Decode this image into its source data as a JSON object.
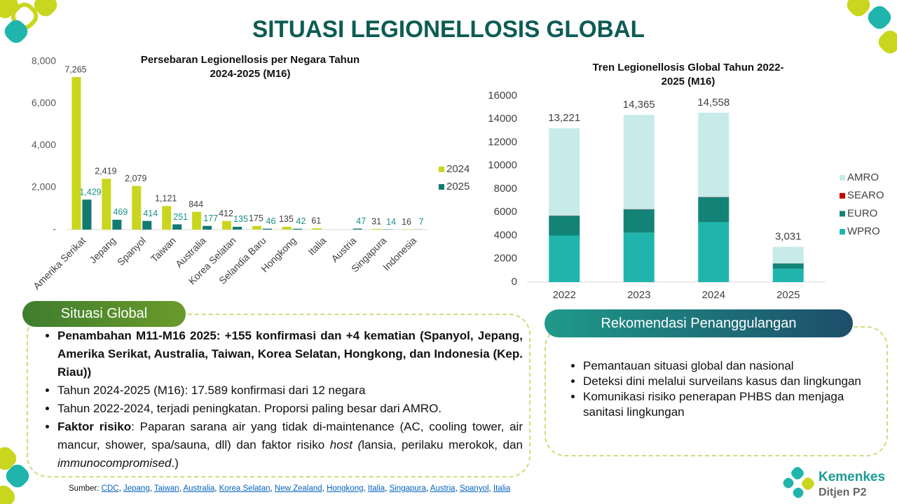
{
  "title": "SITUASI LEGIONELLOSIS GLOBAL",
  "chart_data": [
    {
      "type": "bar",
      "title": "Persebaran Legionellosis per Negara Tahun 2024-2025 (M16)",
      "categories": [
        "Amerika Serikat",
        "Jepang",
        "Spanyol",
        "Taiwan",
        "Australia",
        "Korea Selatan",
        "Selandia Baru",
        "Hongkong",
        "Italia",
        "Austria",
        "Singapura",
        "Indonesia"
      ],
      "series": [
        {
          "name": "2024",
          "color": "#c9d61e",
          "label_color": "#404040",
          "values": [
            7265,
            2419,
            2079,
            1121,
            844,
            412,
            175,
            135,
            61,
            null,
            31,
            16
          ],
          "value_labels": [
            "7,265",
            "2,419",
            "2,079",
            "1,121",
            "844",
            "412",
            "175",
            "135",
            "61",
            null,
            "31",
            "16"
          ]
        },
        {
          "name": "2025",
          "color": "#137a72",
          "label_color": "#1a8f88",
          "values": [
            1429,
            469,
            414,
            251,
            177,
            135,
            46,
            42,
            null,
            47,
            14,
            7
          ],
          "value_labels": [
            "1,429",
            "469",
            "414",
            "251",
            "177",
            "135",
            "46",
            "42",
            null,
            "47",
            "14",
            "7"
          ]
        }
      ],
      "ylim": [
        0,
        8000
      ],
      "yticks": [
        {
          "value": 0,
          "label": "-"
        },
        {
          "value": 2000,
          "label": "2,000"
        },
        {
          "value": 4000,
          "label": "4,000"
        },
        {
          "value": 6000,
          "label": "6,000"
        },
        {
          "value": 8000,
          "label": "8,000"
        }
      ],
      "legend": "right"
    },
    {
      "type": "stacked_bar",
      "title": "Tren Legionellosis Global Tahun 2022-2025 (M16)",
      "categories": [
        "2022",
        "2023",
        "2024",
        "2025"
      ],
      "series": [
        {
          "name": "WPRO",
          "color": "#1fb5ad",
          "values": [
            4000,
            4250,
            5150,
            1150
          ]
        },
        {
          "name": "EURO",
          "color": "#138378",
          "values": [
            1700,
            2000,
            2150,
            450
          ]
        },
        {
          "name": "SEARO",
          "color": "#c00000",
          "values": [
            20,
            20,
            20,
            10
          ]
        },
        {
          "name": "AMRO",
          "color": "#c6ebe9",
          "values": [
            7501,
            8095,
            7238,
            1421
          ]
        }
      ],
      "totals": [
        13221,
        14365,
        14558,
        3031
      ],
      "total_labels": [
        "13,221",
        "14,365",
        "14,558",
        "3,031"
      ],
      "ylim": [
        0,
        16000
      ],
      "yticks": [
        0,
        2000,
        4000,
        6000,
        8000,
        10000,
        12000,
        14000,
        16000
      ],
      "legend": "right"
    }
  ],
  "situasi_global": {
    "header": "Situasi Global",
    "bullets": [
      [
        {
          "text": "Penambahan M11-M16 2025: +155 konfirmasi dan +4 kematian (Spanyol, Jepang, Amerika Serikat, Australia, Taiwan, Korea Selatan, Hongkong, dan Indonesia (Kep. Riau))",
          "style": "bold"
        }
      ],
      [
        {
          "text": "Tahun 2024-2025 (M16): 17.589 konfirmasi dari 12 negara",
          "style": "normal"
        }
      ],
      [
        {
          "text": "Tahun 2022-2024, terjadi peningkatan. Proporsi paling besar dari AMRO.",
          "style": "normal"
        }
      ],
      [
        {
          "text": "Faktor risiko",
          "style": "bold"
        },
        {
          "text": ": Paparan sarana air yang tidak di-maintenance (AC, cooling tower, air mancur, shower, spa/sauna, dll) dan faktor risiko ",
          "style": "normal"
        },
        {
          "text": "host (",
          "style": "italic"
        },
        {
          "text": "lansia, perilaku merokok, dan ",
          "style": "normal"
        },
        {
          "text": "immunocompromised",
          "style": "italic"
        },
        {
          "text": ".)",
          "style": "normal"
        }
      ]
    ]
  },
  "rekomendasi": {
    "header": "Rekomendasi Penanggulangan",
    "bullets": [
      "Pemantauan situasi global dan nasional",
      "Deteksi dini melalui surveilans kasus dan lingkungan",
      "Komunikasi risiko penerapan PHBS dan menjaga sanitasi lingkungan"
    ]
  },
  "source": {
    "label": "Sumber:",
    "separator": ", ",
    "links": [
      "CDC",
      "Jepang",
      "Taiwan",
      "Australia",
      "Korea Selatan",
      "New Zealand",
      "Hongkong",
      "Italia",
      "Singapura",
      "Austria",
      "Spanyol",
      "Italia"
    ]
  },
  "logo": {
    "name": "Kemenkes",
    "unit": "Ditjen P2"
  }
}
